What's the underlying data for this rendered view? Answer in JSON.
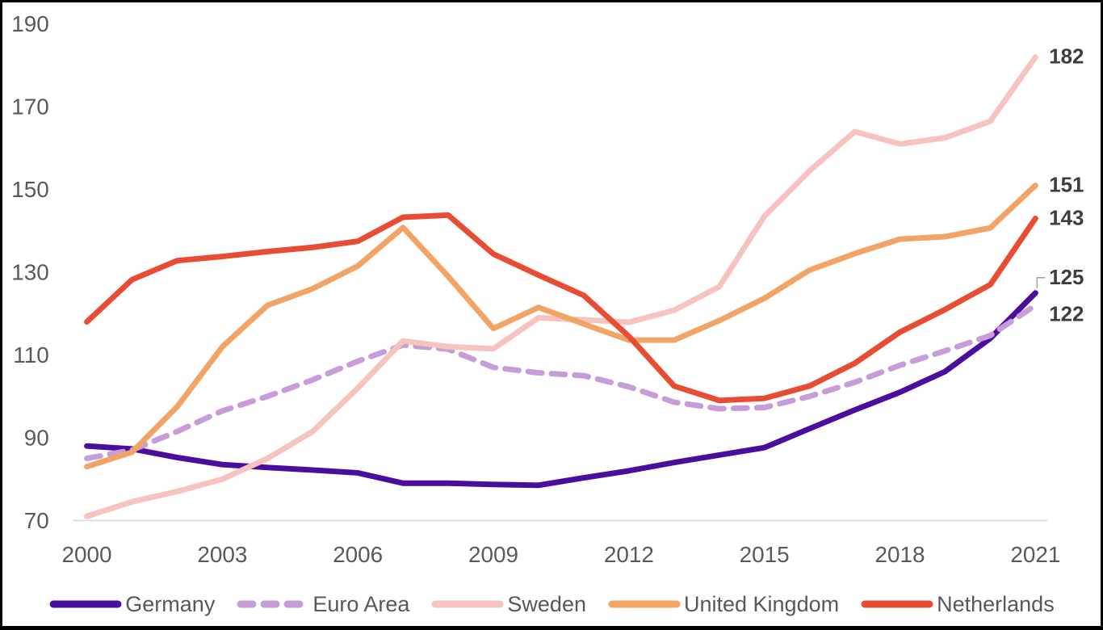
{
  "chart_data": {
    "type": "line",
    "title": "",
    "xlabel": "",
    "ylabel": "",
    "x": [
      2000,
      2001,
      2002,
      2003,
      2004,
      2005,
      2006,
      2007,
      2008,
      2009,
      2010,
      2011,
      2012,
      2013,
      2014,
      2015,
      2016,
      2017,
      2018,
      2019,
      2020,
      2021
    ],
    "x_ticks": [
      2000,
      2003,
      2006,
      2009,
      2012,
      2015,
      2018,
      2021
    ],
    "y_ticks": [
      70,
      90,
      110,
      130,
      150,
      170,
      190
    ],
    "ylim": [
      70,
      190
    ],
    "xlim": [
      2000,
      2021
    ],
    "grid": false,
    "legend_position": "bottom",
    "axis_line_color": "#d9d9d9",
    "tick_label_color": "#595959",
    "end_label_color": "#3d3d3d",
    "leader_line_color": "#a0a0a0",
    "series": [
      {
        "name": "Germany",
        "color": "#4a0d9e",
        "style": "solid",
        "end_label": "125",
        "values": [
          88,
          87.3,
          85.2,
          83.5,
          82.8,
          82.2,
          81.5,
          79,
          79,
          78.7,
          78.5,
          80.3,
          82,
          84,
          85.8,
          87.6,
          92.2,
          96.7,
          101,
          106,
          114,
          125
        ]
      },
      {
        "name": "Euro Area",
        "color": "#c69dd8",
        "style": "dashed",
        "end_label": "122",
        "values": [
          85,
          87,
          91.5,
          96.5,
          100,
          104,
          108.5,
          112.4,
          111.4,
          107,
          105.7,
          105,
          102.3,
          98.6,
          97,
          97.3,
          100,
          103.4,
          107.5,
          111,
          114.7,
          122
        ]
      },
      {
        "name": "Sweden",
        "color": "#f6c3bf",
        "style": "solid",
        "end_label": "182",
        "values": [
          71,
          74.5,
          77,
          80,
          85,
          91.5,
          102,
          113.4,
          112,
          111.5,
          119,
          118.5,
          117.9,
          120.8,
          126.5,
          143.5,
          154.5,
          164,
          161,
          162.5,
          166.5,
          182
        ]
      },
      {
        "name": "United Kingdom",
        "color": "#f2a467",
        "style": "solid",
        "end_label": "151",
        "values": [
          83,
          86.5,
          97.5,
          112,
          122,
          126,
          131.5,
          140.8,
          129,
          116.4,
          121.5,
          117.5,
          113.6,
          113.6,
          118.3,
          123.7,
          130.5,
          134.5,
          138,
          138.6,
          140.7,
          151
        ]
      },
      {
        "name": "Netherlands",
        "color": "#e84c33",
        "style": "solid",
        "end_label": "143",
        "values": [
          118,
          128.2,
          132.8,
          133.8,
          135,
          136,
          137.5,
          143.3,
          143.8,
          134.4,
          129.3,
          124.4,
          114.5,
          102.5,
          99,
          99.5,
          102.5,
          108,
          115.5,
          121,
          127,
          143
        ]
      }
    ]
  }
}
